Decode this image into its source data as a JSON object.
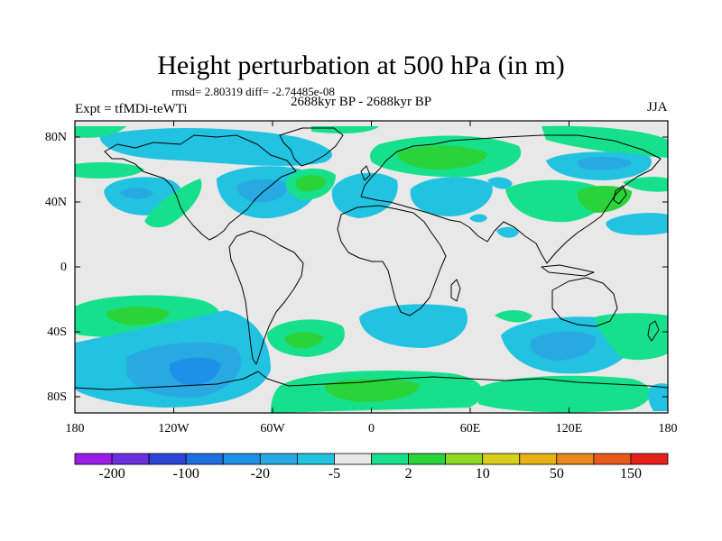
{
  "header": {
    "title": "Height perturbation at 500 hPa (in m)",
    "subtitle": "rmsd= 2.80319 diff= -2.74485e-08",
    "left_label": "Expt = tfMDi-teWTi",
    "center_label": "2688kyr BP - 2688kyr BP",
    "right_label": "JJA"
  },
  "map": {
    "projection": "cylindrical-equidistant",
    "lon_range": [
      -180,
      180
    ],
    "lat_range": [
      -90,
      90
    ],
    "lat_ticks": [
      {
        "value": 80,
        "label": "80N"
      },
      {
        "value": 40,
        "label": "40N"
      },
      {
        "value": 0,
        "label": "0"
      },
      {
        "value": -40,
        "label": "40S"
      },
      {
        "value": -80,
        "label": "80S"
      }
    ],
    "lon_ticks": [
      {
        "value": -180,
        "label": "180"
      },
      {
        "value": -120,
        "label": "120W"
      },
      {
        "value": -60,
        "label": "60W"
      },
      {
        "value": 0,
        "label": "0"
      },
      {
        "value": 60,
        "label": "60E"
      },
      {
        "value": 120,
        "label": "120E"
      },
      {
        "value": 180,
        "label": "180"
      }
    ],
    "background_color": "#e8e8e8",
    "coastline_color": "#000000"
  },
  "colorbar": {
    "colors": [
      "#9a1de8",
      "#6b2fe0",
      "#2b45d6",
      "#1f6fe0",
      "#1f90e8",
      "#29a9e2",
      "#22c3e0",
      "#e8e8e8",
      "#17e08c",
      "#2ad33a",
      "#8fd924",
      "#d7cf19",
      "#e8b114",
      "#e8871a",
      "#e85a1a",
      "#e8201a"
    ],
    "labels": [
      {
        "index": 1,
        "text": "-200"
      },
      {
        "index": 3,
        "text": "-100"
      },
      {
        "index": 5,
        "text": "-20"
      },
      {
        "index": 7,
        "text": "-5"
      },
      {
        "index": 9,
        "text": "2"
      },
      {
        "index": 11,
        "text": "10"
      },
      {
        "index": 13,
        "text": "50"
      },
      {
        "index": 15,
        "text": "150"
      }
    ]
  }
}
